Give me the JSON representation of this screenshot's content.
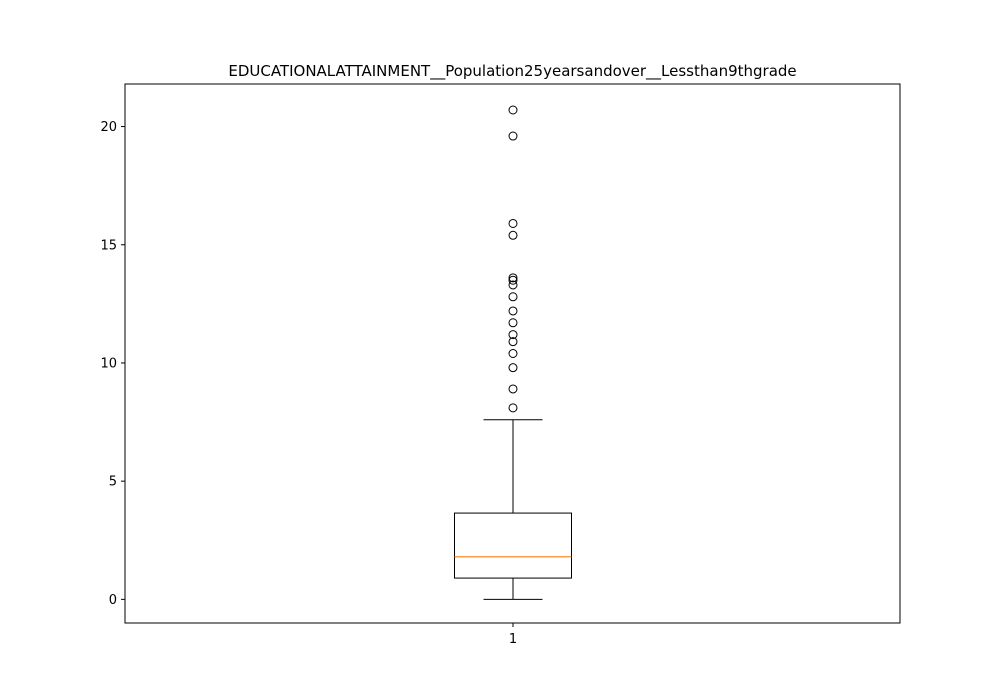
{
  "chart_data": {
    "type": "box",
    "title": "EDUCATIONALATTAINMENT__Population25yearsandover__Lessthan9thgrade",
    "xlabel": "",
    "ylabel": "",
    "categories": [
      "1"
    ],
    "ylim": [
      -1.0,
      21.8
    ],
    "yticks": [
      0,
      5,
      10,
      15,
      20
    ],
    "grid": false,
    "box": {
      "whisker_low": 0.0,
      "q1": 0.9,
      "median": 1.8,
      "q3": 3.65,
      "whisker_high": 7.6
    },
    "outliers": [
      8.1,
      8.9,
      9.8,
      10.4,
      10.9,
      11.2,
      11.7,
      12.2,
      12.8,
      13.3,
      13.5,
      13.6,
      15.4,
      15.9,
      19.6,
      20.7
    ],
    "colors": {
      "box": "#000000",
      "median": "#ff7f0e",
      "flier": "#000000"
    }
  }
}
